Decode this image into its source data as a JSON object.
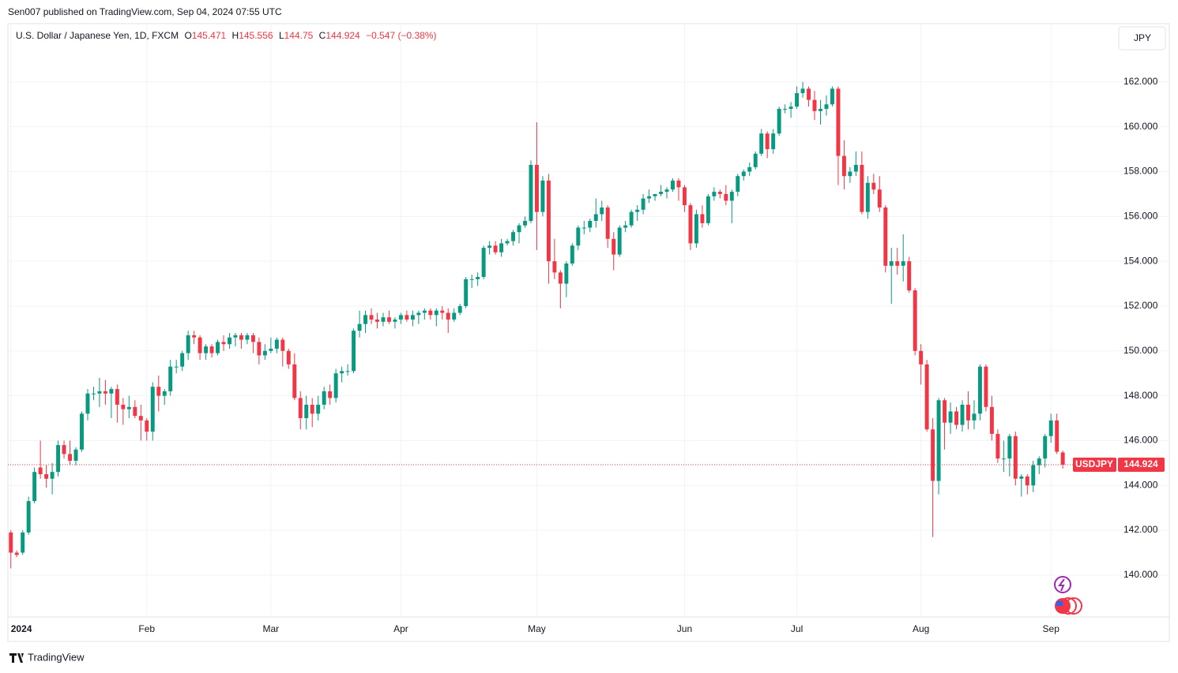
{
  "chart_data": {
    "type": "candlestick",
    "published": "Sen007 published on TradingView.com, Sep 04, 2024 07:55 UTC",
    "symbol_title": "U.S. Dollar / Japanese Yen, 1D, FXCM",
    "legend": {
      "open_label": "O",
      "open": 145.471,
      "high_label": "H",
      "high": 145.556,
      "low_label": "L",
      "low": 144.75,
      "close_label": "C",
      "close": 144.924,
      "change": {
        "value": -0.547,
        "label": "−0.547"
      },
      "change_pct": {
        "value": -0.38,
        "label": "(−0.38%)"
      }
    },
    "currency_button": "JPY",
    "symbol": "USDJPY",
    "last_price": 144.924,
    "brand": "TradingView",
    "up_color": "#089981",
    "down_color": "#f23645",
    "grid": true,
    "ylim": [
      138.13,
      164.6
    ],
    "xlim": [
      -0.5,
      186.4
    ],
    "yticks": [
      {
        "value": 140,
        "label": "140.000"
      },
      {
        "value": 142,
        "label": "142.000"
      },
      {
        "value": 144,
        "label": "144.000"
      },
      {
        "value": 146,
        "label": "146.000"
      },
      {
        "value": 148,
        "label": "148.000"
      },
      {
        "value": 150,
        "label": "150.000"
      },
      {
        "value": 152,
        "label": "152.000"
      },
      {
        "value": 154,
        "label": "154.000"
      },
      {
        "value": 156,
        "label": "156.000"
      },
      {
        "value": 158,
        "label": "158.000"
      },
      {
        "value": 160,
        "label": "160.000"
      },
      {
        "value": 162,
        "label": "162.000"
      }
    ],
    "xticks": [
      {
        "value": 0,
        "label": "2024"
      },
      {
        "value": 23,
        "label": "Feb"
      },
      {
        "value": 44,
        "label": "Mar"
      },
      {
        "value": 66,
        "label": "Apr"
      },
      {
        "value": 89,
        "label": "May"
      },
      {
        "value": 114,
        "label": "Jun"
      },
      {
        "value": 133,
        "label": "Jul"
      },
      {
        "value": 154,
        "label": "Aug"
      },
      {
        "value": 176,
        "label": "Sep"
      }
    ],
    "ohlc": [
      [
        141.9,
        142.0,
        140.3,
        141.0
      ],
      [
        141.0,
        141.1,
        140.8,
        140.9
      ],
      [
        141.0,
        142.0,
        140.9,
        141.9
      ],
      [
        141.9,
        143.5,
        141.8,
        143.3
      ],
      [
        143.3,
        144.8,
        143.2,
        144.6
      ],
      [
        144.8,
        146.0,
        144.3,
        144.5
      ],
      [
        144.5,
        144.9,
        143.9,
        144.3
      ],
      [
        144.3,
        145.0,
        143.6,
        144.6
      ],
      [
        144.6,
        146.0,
        144.4,
        145.8
      ],
      [
        145.8,
        146.0,
        145.2,
        145.4
      ],
      [
        145.4,
        146.0,
        144.9,
        145.1
      ],
      [
        145.1,
        145.7,
        144.9,
        145.6
      ],
      [
        145.6,
        147.3,
        145.5,
        147.2
      ],
      [
        147.2,
        148.3,
        146.9,
        148.1
      ],
      [
        148.1,
        148.4,
        147.8,
        148.1
      ],
      [
        148.1,
        148.8,
        147.5,
        148.2
      ],
      [
        148.2,
        148.7,
        147.6,
        148.1
      ],
      [
        148.1,
        148.4,
        147.0,
        148.3
      ],
      [
        148.3,
        148.5,
        146.8,
        147.6
      ],
      [
        147.6,
        147.9,
        146.7,
        147.4
      ],
      [
        147.4,
        148.0,
        147.0,
        147.5
      ],
      [
        147.5,
        147.8,
        147.0,
        147.1
      ],
      [
        147.1,
        147.6,
        146.0,
        146.9
      ],
      [
        146.9,
        147.0,
        146.0,
        146.4
      ],
      [
        146.4,
        148.6,
        146.0,
        148.4
      ],
      [
        148.4,
        148.9,
        147.3,
        148.0
      ],
      [
        148.0,
        148.3,
        147.6,
        148.2
      ],
      [
        148.2,
        149.6,
        148.0,
        149.3
      ],
      [
        149.3,
        149.6,
        149.0,
        149.3
      ],
      [
        149.3,
        150.0,
        149.1,
        149.9
      ],
      [
        149.9,
        150.9,
        149.6,
        150.7
      ],
      [
        150.7,
        150.9,
        150.3,
        150.6
      ],
      [
        150.6,
        150.7,
        149.6,
        149.9
      ],
      [
        149.9,
        150.3,
        149.6,
        150.2
      ],
      [
        150.2,
        150.3,
        149.7,
        149.9
      ],
      [
        149.9,
        150.5,
        149.8,
        150.4
      ],
      [
        150.4,
        150.7,
        150.0,
        150.3
      ],
      [
        150.3,
        150.8,
        150.1,
        150.6
      ],
      [
        150.6,
        150.8,
        150.2,
        150.7
      ],
      [
        150.7,
        150.8,
        150.1,
        150.5
      ],
      [
        150.5,
        150.8,
        150.3,
        150.7
      ],
      [
        150.7,
        150.8,
        149.9,
        150.4
      ],
      [
        150.4,
        150.6,
        149.4,
        149.8
      ],
      [
        149.8,
        150.3,
        149.6,
        150.0
      ],
      [
        150.0,
        150.6,
        149.9,
        150.1
      ],
      [
        150.1,
        150.6,
        149.9,
        150.5
      ],
      [
        150.5,
        150.6,
        149.3,
        150.0
      ],
      [
        150.0,
        150.1,
        149.2,
        149.4
      ],
      [
        149.4,
        149.9,
        147.8,
        147.9
      ],
      [
        147.9,
        148.2,
        146.5,
        147.0
      ],
      [
        147.0,
        148.0,
        146.5,
        147.6
      ],
      [
        147.6,
        147.9,
        146.6,
        147.2
      ],
      [
        147.2,
        148.0,
        146.9,
        147.6
      ],
      [
        147.6,
        148.4,
        147.4,
        148.2
      ],
      [
        148.2,
        148.5,
        147.6,
        147.9
      ],
      [
        147.9,
        149.2,
        147.7,
        149.0
      ],
      [
        149.0,
        149.3,
        148.6,
        149.1
      ],
      [
        149.1,
        149.4,
        148.9,
        149.1
      ],
      [
        149.1,
        151.0,
        149.0,
        150.9
      ],
      [
        150.9,
        151.8,
        150.6,
        151.2
      ],
      [
        151.2,
        151.8,
        150.8,
        151.6
      ],
      [
        151.6,
        151.9,
        151.2,
        151.4
      ],
      [
        151.4,
        151.7,
        151.0,
        151.3
      ],
      [
        151.3,
        151.7,
        151.1,
        151.5
      ],
      [
        151.5,
        151.8,
        151.2,
        151.3
      ],
      [
        151.3,
        151.5,
        151.0,
        151.4
      ],
      [
        151.4,
        151.7,
        151.2,
        151.6
      ],
      [
        151.6,
        151.8,
        151.3,
        151.4
      ],
      [
        151.4,
        151.8,
        151.1,
        151.6
      ],
      [
        151.6,
        151.8,
        151.2,
        151.7
      ],
      [
        151.7,
        151.9,
        151.4,
        151.8
      ],
      [
        151.8,
        151.9,
        151.4,
        151.6
      ],
      [
        151.6,
        151.9,
        151.1,
        151.8
      ],
      [
        151.8,
        152.0,
        151.4,
        151.7
      ],
      [
        151.7,
        151.9,
        150.8,
        151.4
      ],
      [
        151.4,
        151.9,
        151.3,
        151.7
      ],
      [
        151.7,
        152.1,
        151.6,
        152.0
      ],
      [
        152.0,
        153.3,
        151.9,
        153.2
      ],
      [
        153.2,
        153.4,
        152.8,
        153.2
      ],
      [
        153.2,
        153.5,
        152.9,
        153.3
      ],
      [
        153.3,
        154.7,
        153.2,
        154.6
      ],
      [
        154.6,
        154.9,
        154.3,
        154.7
      ],
      [
        154.7,
        154.9,
        154.3,
        154.4
      ],
      [
        154.4,
        155.0,
        154.2,
        154.8
      ],
      [
        154.8,
        155.0,
        154.7,
        154.9
      ],
      [
        154.9,
        155.4,
        154.7,
        155.3
      ],
      [
        155.3,
        155.7,
        154.8,
        155.6
      ],
      [
        155.6,
        156.0,
        155.5,
        155.8
      ],
      [
        155.8,
        158.5,
        155.7,
        158.3
      ],
      [
        158.3,
        160.2,
        154.5,
        156.2
      ],
      [
        156.2,
        157.8,
        156.0,
        157.6
      ],
      [
        157.6,
        157.9,
        153.0,
        154.0
      ],
      [
        154.0,
        155.0,
        153.2,
        153.5
      ],
      [
        153.5,
        153.6,
        151.9,
        153.0
      ],
      [
        153.0,
        154.0,
        152.4,
        153.9
      ],
      [
        153.9,
        154.8,
        153.8,
        154.7
      ],
      [
        154.7,
        155.6,
        154.5,
        155.5
      ],
      [
        155.5,
        155.8,
        155.2,
        155.5
      ],
      [
        155.5,
        155.9,
        155.3,
        155.8
      ],
      [
        155.8,
        156.8,
        155.5,
        156.1
      ],
      [
        156.1,
        156.7,
        155.8,
        156.4
      ],
      [
        156.4,
        156.5,
        154.6,
        155.0
      ],
      [
        155.0,
        155.3,
        153.6,
        154.3
      ],
      [
        154.3,
        155.6,
        154.2,
        155.5
      ],
      [
        155.5,
        155.8,
        155.3,
        155.6
      ],
      [
        155.6,
        156.3,
        155.5,
        156.2
      ],
      [
        156.2,
        156.5,
        155.8,
        156.3
      ],
      [
        156.3,
        157.0,
        156.1,
        156.8
      ],
      [
        156.8,
        157.2,
        156.6,
        156.9
      ],
      [
        156.9,
        157.0,
        156.7,
        157.0
      ],
      [
        157.0,
        157.4,
        156.9,
        157.1
      ],
      [
        157.1,
        157.3,
        156.8,
        157.2
      ],
      [
        157.2,
        157.7,
        157.1,
        157.6
      ],
      [
        157.6,
        157.7,
        156.7,
        157.3
      ],
      [
        157.3,
        157.4,
        156.2,
        156.5
      ],
      [
        156.5,
        156.6,
        154.5,
        154.8
      ],
      [
        154.8,
        156.3,
        154.6,
        156.1
      ],
      [
        156.1,
        156.5,
        155.5,
        155.7
      ],
      [
        155.7,
        157.0,
        155.6,
        156.9
      ],
      [
        156.9,
        157.3,
        156.7,
        157.1
      ],
      [
        157.1,
        157.2,
        156.8,
        157.0
      ],
      [
        157.0,
        157.4,
        156.5,
        156.7
      ],
      [
        156.7,
        157.2,
        155.7,
        157.1
      ],
      [
        157.1,
        157.9,
        156.9,
        157.8
      ],
      [
        157.8,
        158.1,
        157.6,
        158.0
      ],
      [
        158.0,
        158.4,
        157.8,
        158.2
      ],
      [
        158.2,
        158.9,
        158.1,
        158.8
      ],
      [
        158.8,
        159.9,
        158.7,
        159.7
      ],
      [
        159.7,
        159.8,
        158.6,
        159.0
      ],
      [
        159.0,
        159.9,
        158.8,
        159.7
      ],
      [
        159.7,
        160.9,
        159.6,
        160.8
      ],
      [
        160.8,
        161.0,
        160.6,
        160.8
      ],
      [
        160.8,
        161.1,
        160.4,
        160.9
      ],
      [
        160.9,
        161.8,
        160.8,
        161.5
      ],
      [
        161.5,
        162.0,
        161.3,
        161.7
      ],
      [
        161.7,
        161.8,
        160.9,
        161.2
      ],
      [
        161.2,
        161.6,
        160.3,
        160.7
      ],
      [
        160.7,
        161.2,
        160.1,
        160.8
      ],
      [
        160.8,
        161.4,
        160.5,
        161.0
      ],
      [
        161.0,
        161.8,
        160.9,
        161.7
      ],
      [
        161.7,
        161.8,
        157.4,
        158.7
      ],
      [
        158.7,
        159.4,
        157.2,
        157.8
      ],
      [
        157.8,
        158.2,
        157.5,
        158.0
      ],
      [
        158.0,
        158.9,
        157.8,
        158.3
      ],
      [
        158.3,
        158.9,
        156.1,
        156.2
      ],
      [
        156.2,
        157.8,
        155.9,
        157.5
      ],
      [
        157.5,
        157.9,
        157.0,
        157.2
      ],
      [
        157.2,
        157.8,
        156.2,
        156.4
      ],
      [
        156.4,
        156.5,
        153.5,
        153.8
      ],
      [
        153.8,
        154.6,
        152.1,
        154.0
      ],
      [
        154.0,
        154.6,
        153.4,
        153.8
      ],
      [
        153.8,
        155.2,
        153.1,
        154.0
      ],
      [
        154.0,
        154.2,
        152.6,
        152.7
      ],
      [
        152.7,
        152.8,
        149.8,
        150.0
      ],
      [
        150.0,
        150.3,
        148.5,
        149.4
      ],
      [
        149.4,
        149.6,
        146.4,
        146.5
      ],
      [
        146.5,
        147.0,
        141.7,
        144.2
      ],
      [
        144.2,
        147.9,
        143.6,
        147.8
      ],
      [
        147.8,
        147.9,
        145.6,
        146.8
      ],
      [
        146.8,
        147.7,
        146.3,
        147.3
      ],
      [
        147.3,
        147.5,
        146.5,
        146.7
      ],
      [
        146.7,
        147.8,
        146.4,
        147.6
      ],
      [
        147.6,
        148.2,
        146.5,
        146.9
      ],
      [
        146.9,
        147.8,
        146.5,
        147.2
      ],
      [
        147.2,
        149.4,
        146.9,
        149.3
      ],
      [
        149.3,
        149.4,
        147.3,
        147.5
      ],
      [
        147.5,
        148.0,
        146.0,
        146.3
      ],
      [
        146.3,
        146.5,
        145.0,
        145.2
      ],
      [
        145.2,
        146.0,
        144.6,
        145.2
      ],
      [
        145.2,
        146.3,
        144.4,
        146.2
      ],
      [
        146.2,
        146.4,
        144.0,
        144.3
      ],
      [
        144.3,
        144.5,
        143.5,
        144.4
      ],
      [
        144.4,
        144.5,
        143.6,
        144.0
      ],
      [
        144.0,
        145.1,
        143.7,
        144.9
      ],
      [
        144.9,
        145.3,
        144.5,
        145.2
      ],
      [
        145.2,
        146.3,
        144.8,
        146.2
      ],
      [
        146.2,
        147.2,
        145.9,
        146.9
      ],
      [
        146.9,
        147.2,
        145.4,
        145.5
      ],
      [
        145.471,
        145.556,
        144.75,
        144.924
      ]
    ]
  }
}
